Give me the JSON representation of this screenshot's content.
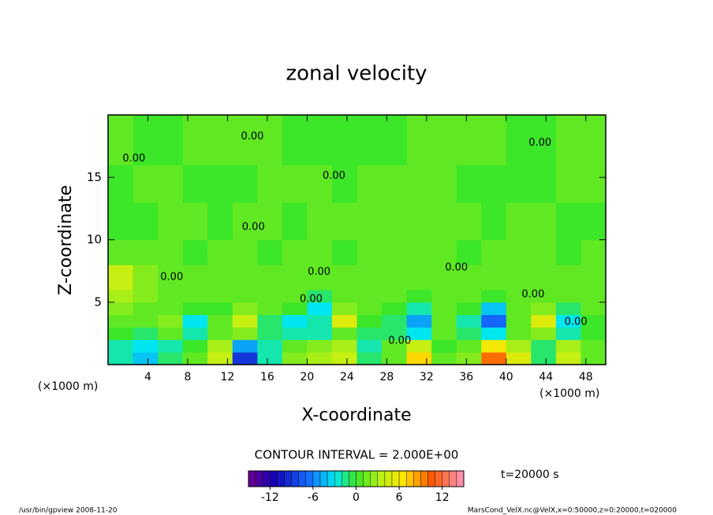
{
  "chart_data": {
    "type": "heatmap",
    "title": "zonal velocity",
    "xlabel": "X-coordinate",
    "ylabel": "Z-coordinate",
    "xunit": "(×1000 m)",
    "yunit": "(×1000 m)",
    "xlim": [
      0,
      50
    ],
    "ylim": [
      0,
      20
    ],
    "xticks": [
      4,
      8,
      12,
      16,
      20,
      24,
      28,
      32,
      36,
      40,
      44,
      48
    ],
    "yticks": [
      5,
      10,
      15
    ],
    "xbins": [
      0,
      2.5,
      5,
      7.5,
      10,
      12.5,
      15,
      17.5,
      20,
      22.5,
      25,
      27.5,
      30,
      32.5,
      35,
      37.5,
      40,
      42.5,
      45,
      47.5,
      50
    ],
    "ybins": [
      0,
      1,
      2,
      3,
      4,
      5,
      6,
      8,
      10,
      13,
      16,
      20
    ],
    "values": [
      [
        -2,
        -4,
        -1,
        1,
        4,
        -9,
        -2,
        2,
        3,
        4,
        -1,
        1,
        7,
        1,
        2,
        10,
        5,
        -1,
        4,
        1
      ],
      [
        -2,
        -3,
        -2,
        0,
        3,
        -5,
        -2,
        1,
        2,
        3,
        -2,
        1,
        4,
        0,
        1,
        6,
        3,
        -1,
        3,
        1
      ],
      [
        0,
        -1,
        1,
        -2,
        1,
        2,
        -1,
        -2,
        -2,
        1,
        -1,
        -1,
        -3,
        1,
        -1,
        -3,
        1,
        2,
        -2,
        0
      ],
      [
        1,
        1,
        2,
        -3,
        1,
        4,
        -1,
        -3,
        -2,
        5,
        0,
        -1,
        -5,
        1,
        -2,
        -7,
        1,
        5,
        -3,
        0
      ],
      [
        2,
        1,
        1,
        0,
        0,
        2,
        1,
        0,
        -3,
        2,
        1,
        0,
        -2,
        1,
        0,
        -4,
        1,
        2,
        -1,
        1
      ],
      [
        3,
        2,
        1,
        1,
        1,
        1,
        1,
        1,
        -1,
        1,
        1,
        1,
        0,
        1,
        1,
        0,
        1,
        1,
        1,
        1
      ],
      [
        4,
        2,
        1,
        1,
        1,
        1,
        1,
        1,
        1,
        1,
        1,
        1,
        1,
        1,
        1,
        1,
        1,
        1,
        1,
        1
      ],
      [
        1,
        1,
        1,
        0,
        1,
        1,
        0,
        1,
        1,
        0,
        1,
        1,
        1,
        1,
        0,
        1,
        1,
        1,
        0,
        1
      ],
      [
        0,
        0,
        1,
        1,
        0,
        1,
        1,
        0,
        1,
        1,
        1,
        1,
        1,
        1,
        1,
        0,
        1,
        1,
        0,
        0
      ],
      [
        0,
        1,
        1,
        0,
        0,
        0,
        1,
        1,
        1,
        0,
        1,
        1,
        1,
        1,
        0,
        0,
        0,
        0,
        1,
        1
      ],
      [
        1,
        0,
        0,
        1,
        1,
        1,
        1,
        0,
        0,
        0,
        0,
        0,
        1,
        1,
        1,
        1,
        0,
        0,
        1,
        1
      ]
    ],
    "contour_labels": [
      {
        "text": "0.00",
        "x": 14.5,
        "y": 18.25
      },
      {
        "text": "0.00",
        "x": 2.6,
        "y": 16.5
      },
      {
        "text": "0.00",
        "x": 43.4,
        "y": 17.75
      },
      {
        "text": "0.00",
        "x": 22.7,
        "y": 15.1
      },
      {
        "text": "0.00",
        "x": 14.6,
        "y": 11
      },
      {
        "text": "0.00",
        "x": 6.4,
        "y": 7
      },
      {
        "text": "0.00",
        "x": 21.2,
        "y": 7.4
      },
      {
        "text": "0.00",
        "x": 35,
        "y": 7.75
      },
      {
        "text": "0.00",
        "x": 42.7,
        "y": 5.6
      },
      {
        "text": "0.00",
        "x": 47,
        "y": 3.4
      },
      {
        "text": "0.00",
        "x": 20.4,
        "y": 5.25
      },
      {
        "text": "0.00",
        "x": 29.3,
        "y": 1.9
      }
    ],
    "contour_interval": "CONTOUR INTERVAL = 2.000E+00",
    "time": "t=20000 s",
    "colorbar": {
      "lim": [
        -15,
        15
      ],
      "ticks": [
        -12,
        -6,
        0,
        6,
        12
      ]
    },
    "footer_left": "/usr/bin/gpview  2008-11-20",
    "footer_right": "MarsCond_VelX.nc@VelX,x=0:50000,z=0:20000,t=020000"
  }
}
